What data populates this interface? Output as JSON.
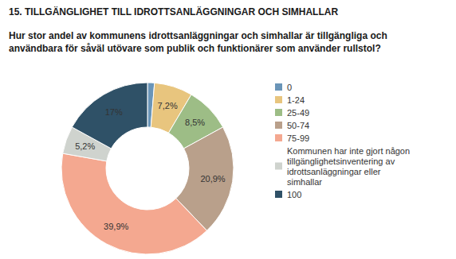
{
  "chart_data": {
    "type": "pie",
    "title": "15. TILLGÄNGLIGHET TILL IDROTTSANLÄGGNINGAR OCH SIMHALLAR",
    "subtitle": "Hur stor andel av kommunens idrottsanläggningar och simhallar är tillgängliga och användbara för såväl utövare som publik och funktionärer som använder rullstol?",
    "categories": [
      "0",
      "1-24",
      "25-49",
      "50-74",
      "75-99",
      "Kommunen har inte gjort någon tillgänglighetsinventering av idrottsanläggningar eller simhallar",
      "100"
    ],
    "values": [
      1.3,
      7.2,
      8.5,
      20.9,
      39.9,
      5.2,
      17
    ],
    "value_labels": [
      null,
      "7,2%",
      "8,5%",
      "20,9%",
      "39,9%",
      "5,2%",
      "17%"
    ],
    "colors": [
      "#6a95b8",
      "#e8c57e",
      "#9dbd86",
      "#b9a08b",
      "#f4a890",
      "#cfd3ce",
      "#2f5167"
    ],
    "data_labels": true,
    "legend": "right"
  }
}
